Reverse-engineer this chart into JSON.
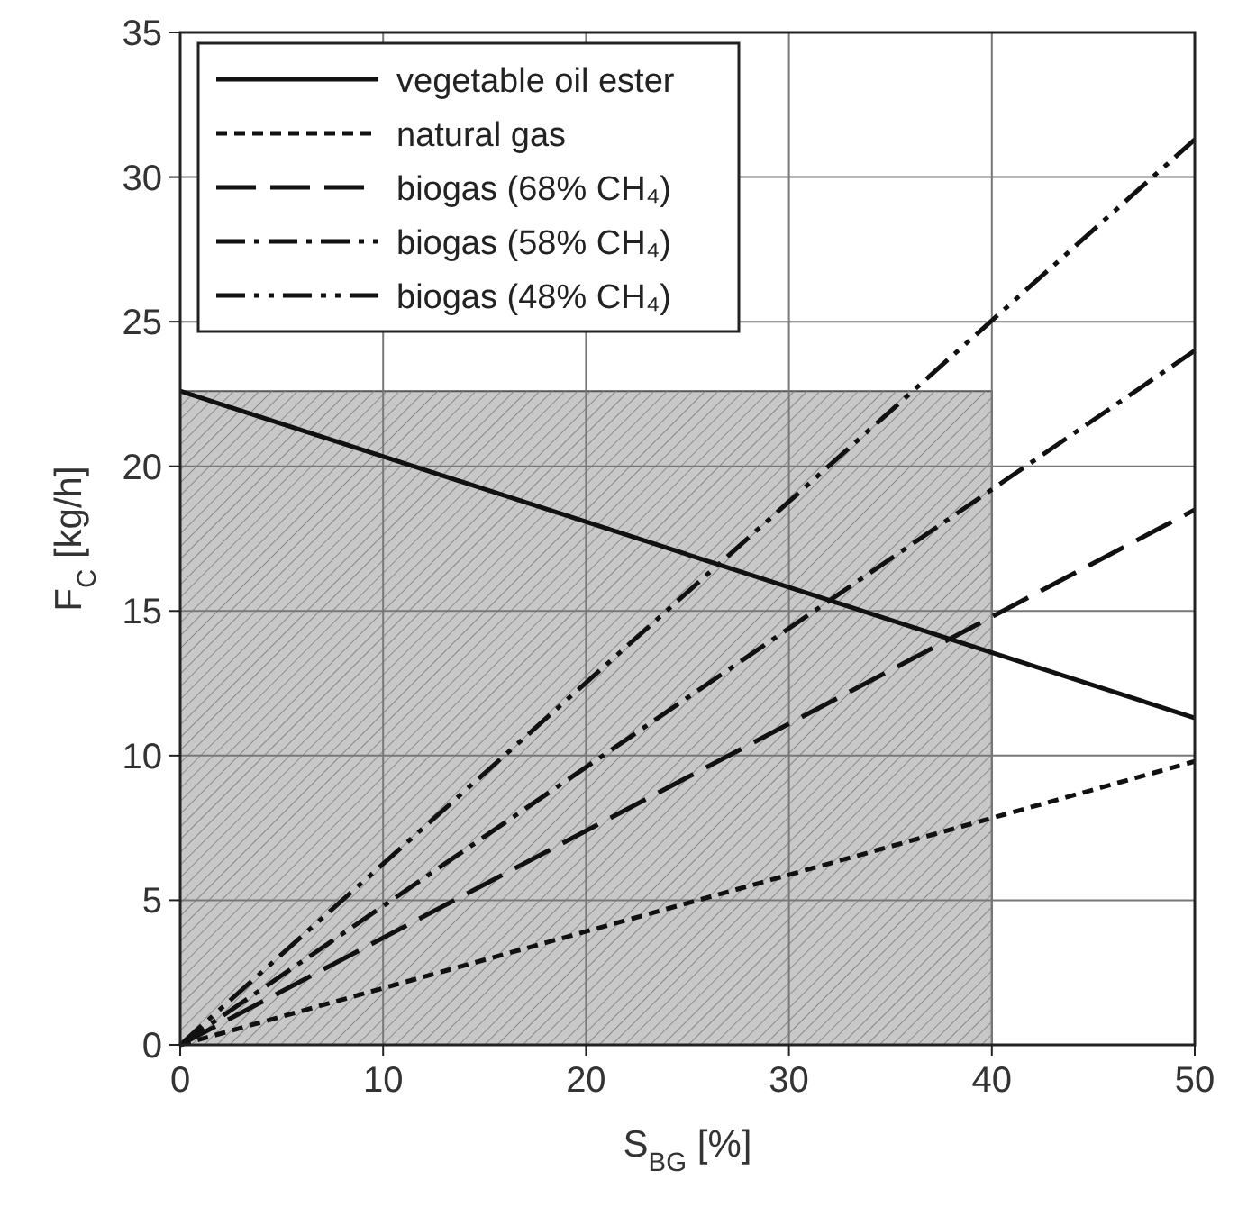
{
  "chart_data": {
    "type": "line",
    "xlabel": "S$_{BG}$ [%]",
    "ylabel": "F$_{C}$ [kg/h]",
    "x": [
      0,
      50
    ],
    "xlim": [
      0,
      50
    ],
    "ylim": [
      0,
      35
    ],
    "xticks": [
      0,
      10,
      20,
      30,
      40,
      50
    ],
    "yticks": [
      0,
      5,
      10,
      15,
      20,
      25,
      30,
      35
    ],
    "grid": true,
    "legend": "top left",
    "series": [
      {
        "type": "area",
        "color": "#c8c8c8",
        "x": [
          0,
          40
        ],
        "values": [
          22.6,
          22.6
        ]
      },
      {
        "name": "vegetable oil ester",
        "color": "#111111",
        "line_style": "solid",
        "values": [
          22.6,
          11.3
        ]
      },
      {
        "name": "natural gas",
        "color": "#111111",
        "line_style": "dashed",
        "values": [
          0,
          9.8
        ]
      },
      {
        "name": "biogas (68% CH₄)",
        "color": "#111111",
        "line_style": "longdash",
        "values": [
          0,
          18.5
        ]
      },
      {
        "name": "biogas (58% CH₄)",
        "color": "#111111",
        "line_style": "dashdot",
        "values": [
          0,
          24
        ]
      },
      {
        "name": "biogas (48% CH₄)",
        "color": "#111111",
        "line_style": "dashdotdot",
        "values": [
          0,
          31.3
        ]
      }
    ]
  }
}
